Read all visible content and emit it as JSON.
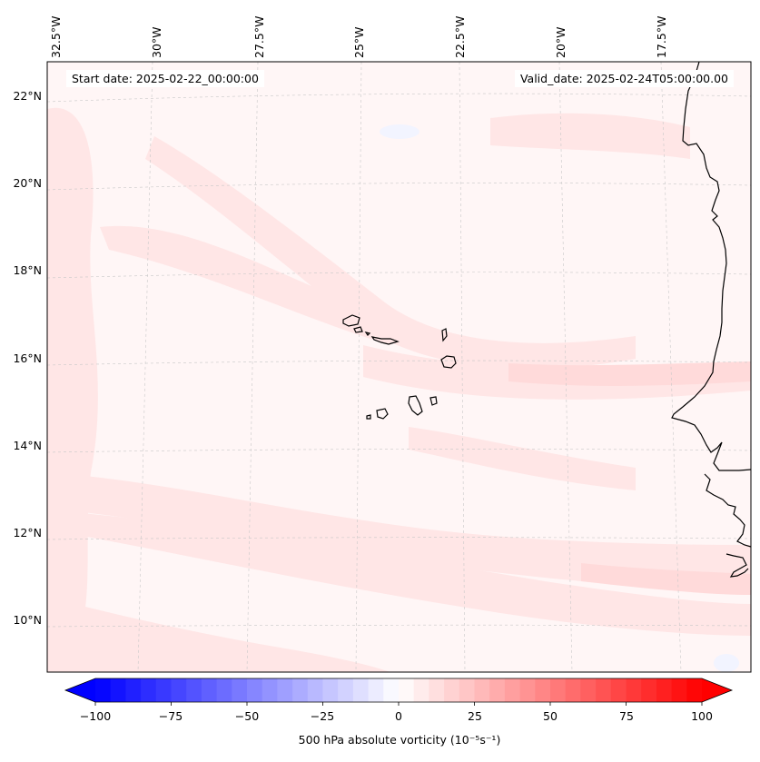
{
  "map": {
    "start_date": "Start date: 2025-02-22_00:00:00",
    "valid_date": "Valid_date: 2025-02-24T05:00:00.00",
    "lon_labels": [
      "32.5°W",
      "30°W",
      "27.5°W",
      "25°W",
      "22.5°W",
      "20°W",
      "17.5°W"
    ],
    "lat_labels": [
      "22°N",
      "20°N",
      "18°N",
      "16°N",
      "14°N",
      "12°N",
      "10°N"
    ],
    "islands_region": "Cabo Verde",
    "coastline_region": "West African coast"
  },
  "colorbar": {
    "label": "500 hPa absolute vorticity (10⁻⁵s⁻¹)",
    "ticks": [
      "−100",
      "−75",
      "−50",
      "−25",
      "0",
      "25",
      "50",
      "75",
      "100"
    ],
    "min": -100,
    "max": 100,
    "min_color": "#0000ff",
    "mid_color": "#ffffff",
    "max_color": "#ff0000"
  },
  "colors": {
    "field_background": "#fff6f6",
    "weak_positive": "#ffe6e6",
    "moderate_positive": "#ffdada",
    "weak_negative": "#f2f4ff",
    "coastline": "#000000"
  }
}
